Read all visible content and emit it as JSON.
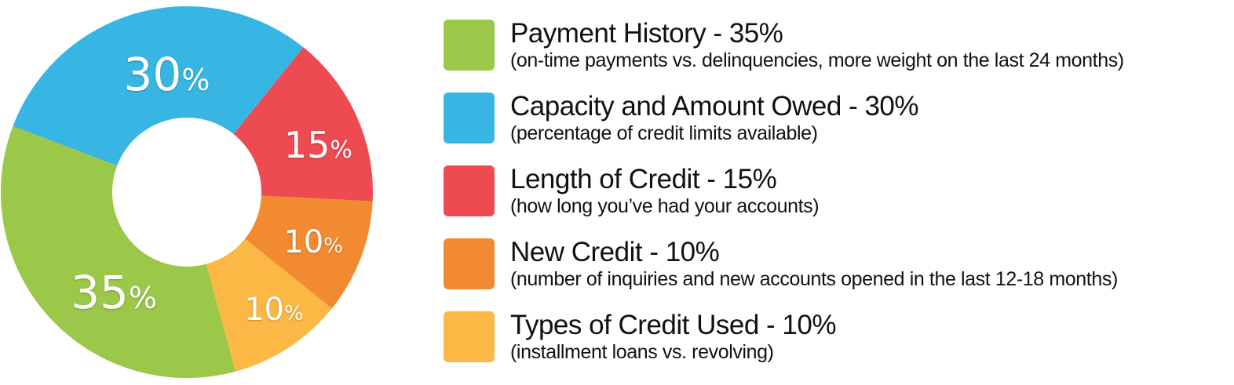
{
  "chart_data": {
    "type": "pie",
    "variant": "donut",
    "legend_position": "right",
    "slices": [
      {
        "label": "Payment History - 35%",
        "description": "(on-time payments vs. delinquencies, more weight on the last 24 months)",
        "value": 35,
        "display": "35",
        "color": "#9BC848"
      },
      {
        "label": "Capacity and Amount Owed - 30%",
        "description": "(percentage of credit limits available)",
        "value": 30,
        "display": "30",
        "color": "#38B6E3"
      },
      {
        "label": "Length of Credit - 15%",
        "description": "(how long you’ve had your accounts)",
        "value": 15,
        "display": "15",
        "color": "#EE4A51"
      },
      {
        "label": "New Credit - 10%",
        "description": "(number of inquiries and new accounts opened in the last 12-18 months)",
        "value": 10,
        "display": "10",
        "color": "#F28A31"
      },
      {
        "label": "Types of Credit Used - 10%",
        "description": "(installment loans vs. revolving)",
        "value": 10,
        "display": "10",
        "color": "#FBB845"
      }
    ],
    "percent_sign": "%"
  }
}
